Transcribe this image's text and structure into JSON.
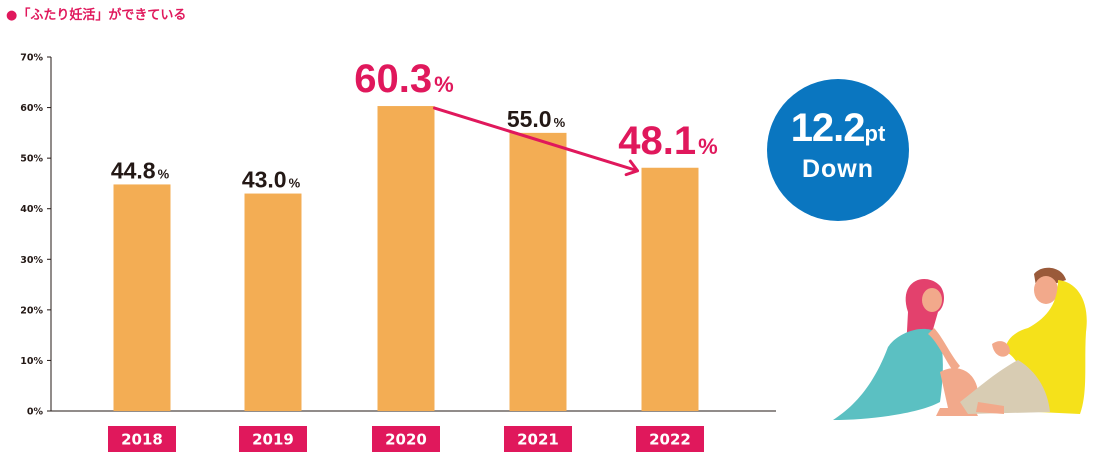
{
  "title": "●「ふたり妊活」ができている",
  "chart_data": {
    "type": "bar",
    "title": "●「ふたり妊活」ができている",
    "categories": [
      "2018",
      "2019",
      "2020",
      "2021",
      "2022"
    ],
    "values": [
      44.8,
      43.0,
      60.3,
      55.0,
      48.1
    ],
    "value_labels": [
      "44.8",
      "43.0",
      "60.3",
      "55.0",
      "48.1"
    ],
    "value_suffix": "%",
    "highlight": [
      false,
      false,
      true,
      false,
      true
    ],
    "ylim": [
      0,
      70
    ],
    "yticks": [
      "0%",
      "10%",
      "20%",
      "30%",
      "40%",
      "50%",
      "60%",
      "70%"
    ],
    "xlabel": "",
    "ylabel": "",
    "arrow": {
      "from": "2020",
      "to": "2022"
    }
  },
  "badge": {
    "value": "12.2",
    "unit": "pt",
    "text": "Down"
  },
  "colors": {
    "bar": "#f3ad54",
    "accent": "#e0185c",
    "label": "#231815",
    "badge": "#0a76c0"
  }
}
